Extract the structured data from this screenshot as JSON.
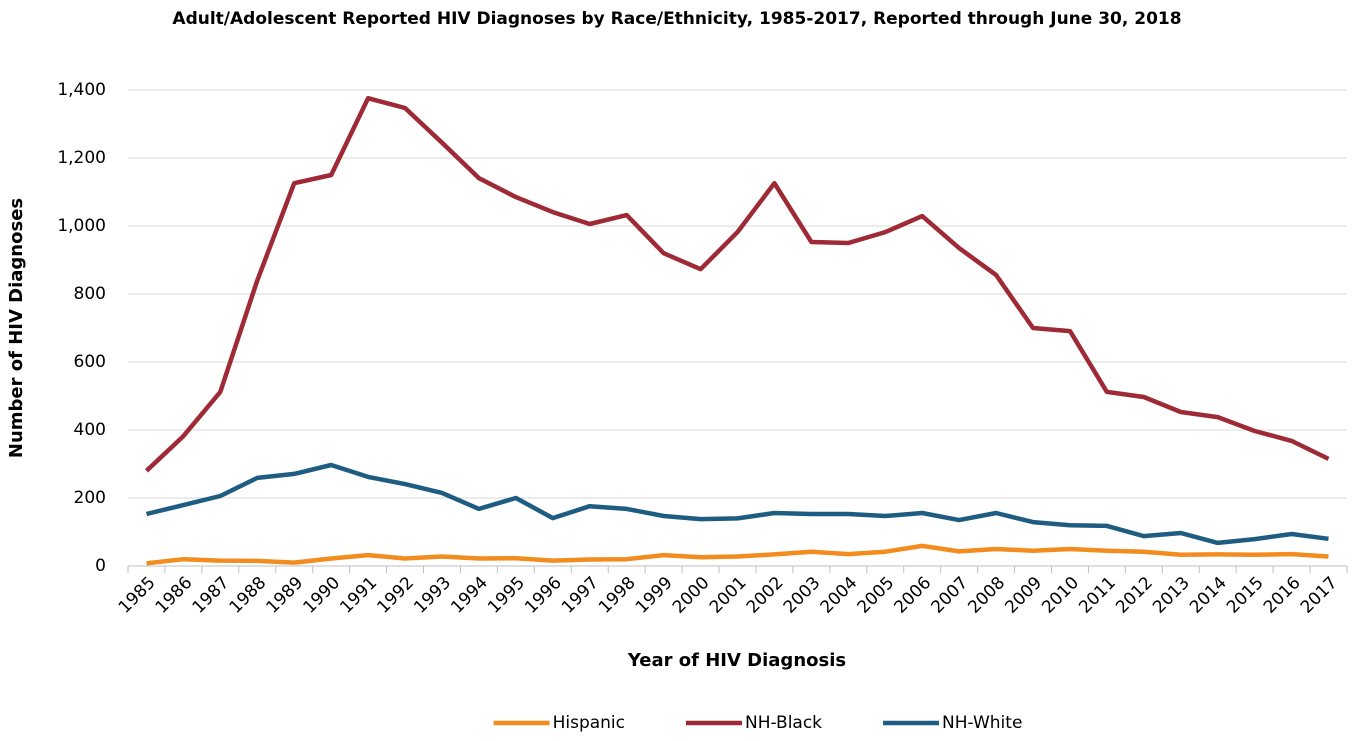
{
  "chart_data": {
    "type": "line",
    "title": "Adult/Adolescent Reported HIV Diagnoses by Race/Ethnicity, 1985-2017, Reported through June 30, 2018",
    "x_label": "Year of HIV Diagnosis",
    "y_label": "Number of HIV Diagnoses",
    "categories": [
      "1985",
      "1986",
      "1987",
      "1988",
      "1989",
      "1990",
      "1991",
      "1992",
      "1993",
      "1994",
      "1995",
      "1996",
      "1997",
      "1998",
      "1999",
      "2000",
      "2001",
      "2002",
      "2003",
      "2004",
      "2005",
      "2006",
      "2007",
      "2008",
      "2009",
      "2010",
      "2011",
      "2012",
      "2013",
      "2014",
      "2015",
      "2016",
      "2017"
    ],
    "series": [
      {
        "name": "Hispanic",
        "color": "#f28c1e",
        "values": [
          8,
          20,
          16,
          15,
          10,
          22,
          32,
          22,
          28,
          22,
          23,
          16,
          19,
          20,
          32,
          26,
          28,
          34,
          42,
          35,
          42,
          59,
          43,
          50,
          45,
          50,
          45,
          42,
          33,
          34,
          33,
          35,
          28
        ]
      },
      {
        "name": "NH-Black",
        "color": "#9e2a36",
        "values": [
          280,
          382,
          512,
          840,
          1126,
          1150,
          1376,
          1347,
          1245,
          1141,
          1085,
          1041,
          1006,
          1032,
          920,
          873,
          982,
          1126,
          953,
          950,
          982,
          1029,
          935,
          856,
          700,
          691,
          512,
          497,
          453,
          438,
          397,
          368,
          315
        ]
      },
      {
        "name": "NH-White",
        "color": "#1f5c82",
        "values": [
          153,
          179,
          206,
          259,
          271,
          297,
          262,
          241,
          215,
          168,
          200,
          141,
          176,
          168,
          147,
          138,
          140,
          156,
          153,
          153,
          147,
          156,
          135,
          156,
          129,
          120,
          118,
          88,
          97,
          68,
          79,
          94,
          80
        ]
      }
    ],
    "ylim": [
      0,
      1400
    ],
    "yticks": [
      0,
      200,
      400,
      600,
      800,
      {
        "value": 1000,
        "label": "1,000"
      },
      {
        "value": 1200,
        "label": "1,200"
      },
      {
        "value": 1400,
        "label": "1,400"
      }
    ],
    "grid": true,
    "legend": "bottom"
  }
}
